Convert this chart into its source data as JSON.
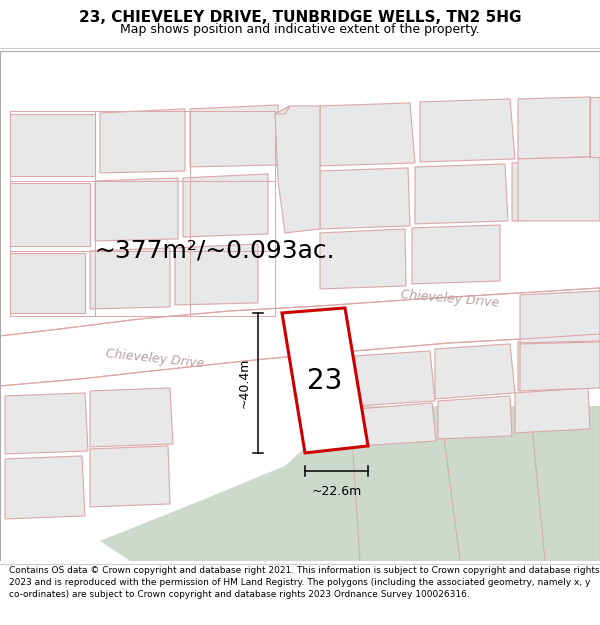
{
  "title": "23, CHIEVELEY DRIVE, TUNBRIDGE WELLS, TN2 5HG",
  "subtitle": "Map shows position and indicative extent of the property.",
  "area_text": "~377m²/~0.093ac.",
  "dimension_width": "~22.6m",
  "dimension_height": "~40.4m",
  "label_23": "23",
  "road_label_left": "Chieveley Drive",
  "road_label_right": "Chieveley Drive",
  "footer": "Contains OS data © Crown copyright and database right 2021. This information is subject to Crown copyright and database rights 2023 and is reproduced with the permission of HM Land Registry. The polygons (including the associated geometry, namely x, y co-ordinates) are subject to Crown copyright and database rights 2023 Ordnance Survey 100026316.",
  "bg_color": "#f7f2f2",
  "road_color": "#ffffff",
  "road_stroke": "#dba8a8",
  "block_fill": "#e8e8e8",
  "block_stroke": "#dba8a8",
  "highlight_fill": "#ffffff",
  "highlight_stroke": "#cc0000",
  "green_fill": "#ccd9cc",
  "text_color": "#000000",
  "road_text_color": "#b8a0a0",
  "title_fontsize": 11,
  "subtitle_fontsize": 9,
  "area_fontsize": 18,
  "label_fontsize": 20,
  "dim_fontsize": 9,
  "road_fontsize": 9,
  "footer_fontsize": 6.5
}
